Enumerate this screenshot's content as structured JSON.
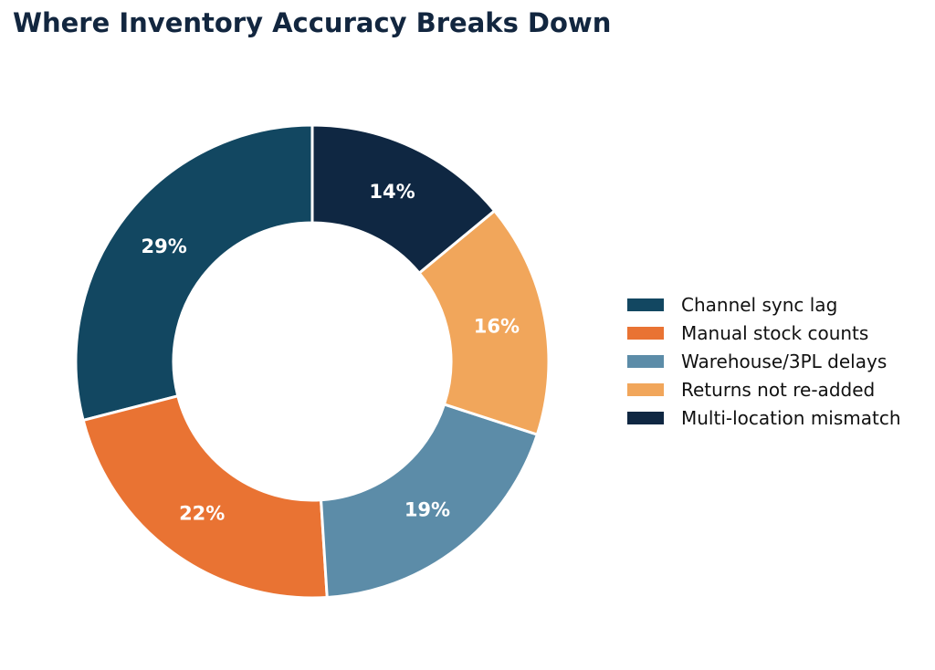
{
  "chart_data": {
    "type": "pie",
    "title": "Where Inventory Accuracy Breaks Down",
    "donut": true,
    "series": [
      {
        "name": "Channel sync lag",
        "value": 29,
        "label": "29%",
        "color": "#124761"
      },
      {
        "name": "Manual stock counts",
        "value": 22,
        "label": "22%",
        "color": "#e97333"
      },
      {
        "name": "Warehouse/3PL delays",
        "value": 19,
        "label": "19%",
        "color": "#5c8ca8"
      },
      {
        "name": "Returns not re-added",
        "value": 16,
        "label": "16%",
        "color": "#f1a65b"
      },
      {
        "name": "Multi-location mismatch",
        "value": 14,
        "label": "14%",
        "color": "#0f2742"
      }
    ],
    "legend_position": "right"
  }
}
